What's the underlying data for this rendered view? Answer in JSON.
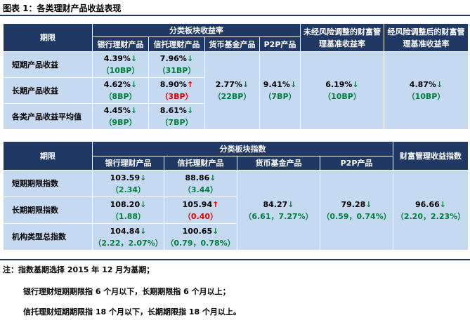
{
  "title": "图表 1：各类理财产品收益表现",
  "table1": {
    "h_period": "期限",
    "h_group": "分类板块收益率",
    "h_bank": "银行理财产品",
    "h_trust": "信托理财产品",
    "h_money": "货币基金产品",
    "h_p2p": "P2P产品",
    "h_unadj": "未经风险调整的财富管理基准收益率",
    "h_adj": "经风险调整后的财富管理基准收益率",
    "rows": [
      {
        "label": "短期产品收益",
        "bank_v": "4.39%",
        "bank_a": "↓",
        "bank_c": "（10BP）",
        "trust_v": "7.96%",
        "trust_a": "↓",
        "trust_c": "（31BP）"
      },
      {
        "label": "长期产品收益",
        "bank_v": "4.62%",
        "bank_a": "↓",
        "bank_c": "（8BP）",
        "trust_v": "8.90%",
        "trust_a": "↑",
        "trust_c": "（3BP）"
      },
      {
        "label": "各类产品收益平均值",
        "bank_v": "4.45%",
        "bank_a": "↓",
        "bank_c": "（9BP）",
        "trust_v": "8.61%",
        "trust_a": "↓",
        "trust_c": "（7BP）"
      }
    ],
    "money_v": "2.77%",
    "money_a": "↓",
    "money_c": "（22BP）",
    "p2p_v": "9.41%",
    "p2p_a": "↓",
    "p2p_c": "（7BP）",
    "unadj_v": "6.19%",
    "unadj_a": "↓",
    "unadj_c": "（10BP）",
    "adj_v": "4.87%",
    "adj_a": "↓",
    "adj_c": "（10BP）"
  },
  "table2": {
    "h_period": "期限",
    "h_group": "分类板块指数",
    "h_bank": "银行理财产品",
    "h_trust": "信托理财产品",
    "h_money": "货币基金产品",
    "h_p2p": "P2P产品",
    "h_wealth": "财富管理收益指数",
    "rows": [
      {
        "label": "短期期限指数",
        "bank_v": "103.59",
        "bank_a": "↓",
        "bank_c": "（2.34）",
        "trust_v": "88.86",
        "trust_a": "↓",
        "trust_c": "（3.44）"
      },
      {
        "label": "长期期限指数",
        "bank_v": "108.20",
        "bank_a": "↓",
        "bank_c": "（1.88）",
        "trust_v": "105.94",
        "trust_a": "↑",
        "trust_c": "（0.40）"
      },
      {
        "label": "机构类型总指数",
        "bank_v": "104.84",
        "bank_a": "↓",
        "bank_c": "（2.22，2.07%）",
        "trust_v": "100.65",
        "trust_a": "↓",
        "trust_c": "（0.79，0.78%）"
      }
    ],
    "money_v": "84.27",
    "money_a": "↓",
    "money_c": "（6.61，7.27%）",
    "p2p_v": "79.28",
    "p2p_a": "↓",
    "p2p_c": "（0.59，0.74%）",
    "wealth_v": "96.66",
    "wealth_a": "↓",
    "wealth_c": "（2.20，2.23%）"
  },
  "notes": {
    "n1": "注：指数基期选择 2015 年 12 月为基期；",
    "n2": "银行理财短期期限指 6 个月以下，长期期限指 6 个月以上；",
    "n3": "信托理财短期期限指 18 个月以下，长期期限指 18 个月以上。"
  }
}
